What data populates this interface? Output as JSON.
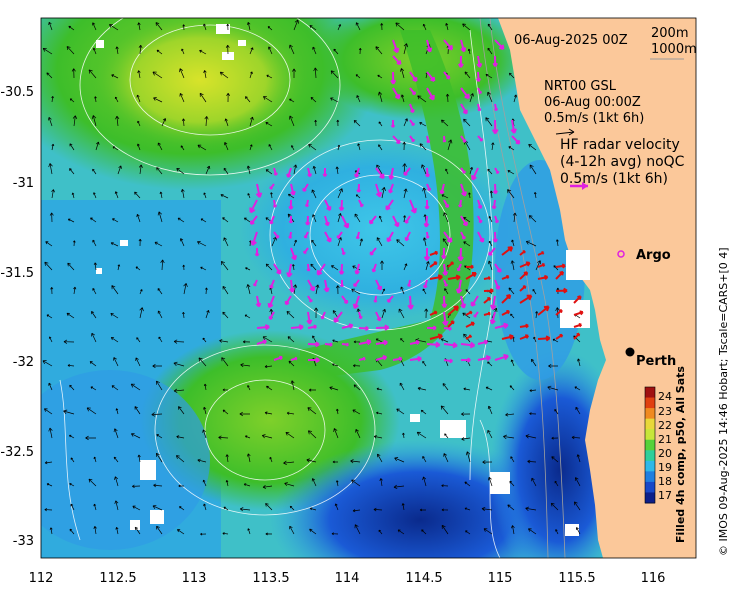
{
  "map": {
    "x_ticks": [
      "112",
      "112.5",
      "113",
      "113.5",
      "114",
      "114.5",
      "115",
      "115.5",
      "116"
    ],
    "y_ticks": [
      "-30.5",
      "-31",
      "-31.5",
      "-32",
      "-32.5",
      "-33"
    ],
    "land_color": "#fbc89a",
    "ocean_palette": [
      "#0a2a8c",
      "#1a5ad6",
      "#2f9be6",
      "#3fc7e8",
      "#3cd08a",
      "#3dbe2a",
      "#9ed52a",
      "#d8e32a"
    ]
  },
  "annotations": {
    "date": "06-Aug-2025 00Z",
    "depth_200": "200m",
    "depth_1000": "1000m",
    "gsl_title": "NRT00 GSL",
    "gsl_time": "06-Aug 00:00Z",
    "gsl_scale": "0.5m/s (1kt 6h)",
    "hf_line1": "HF radar velocity",
    "hf_line2": "(4-12h avg) noQC",
    "hf_scale": "0.5m/s (1kt 6h)"
  },
  "places": {
    "argo": "Argo",
    "perth": "Perth"
  },
  "colorbar": {
    "labels": [
      "24",
      "23",
      "22",
      "21",
      "20",
      "19",
      "18",
      "17"
    ],
    "title": "Filled 4h comp, p50, All Sats",
    "colors": [
      "#a01010",
      "#e04010",
      "#f08a20",
      "#e8d83a",
      "#c7e63a",
      "#56d23a",
      "#2fcf9a",
      "#2fb8e8",
      "#1f7ee0",
      "#1848c8",
      "#0c1f8a"
    ]
  },
  "credit": "© IMOS 09-Aug-2025 14:46 Hobart; Tscale=CARS+[0 4]"
}
